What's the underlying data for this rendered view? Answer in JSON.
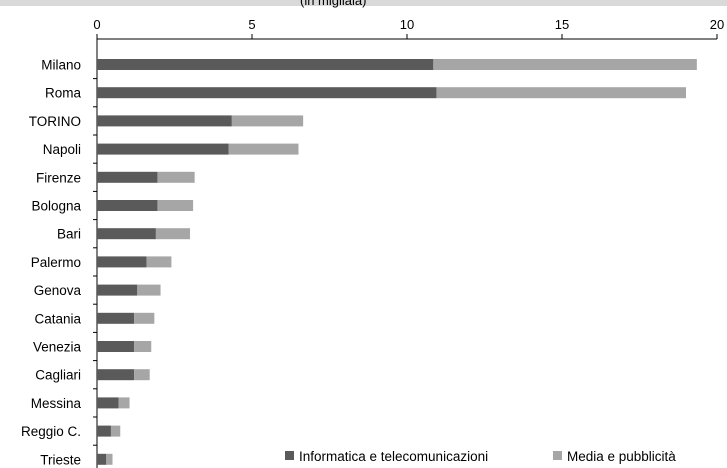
{
  "chart_data": {
    "type": "bar",
    "orientation": "horizontal",
    "stacked": true,
    "title": "(in migliaia)",
    "xlabel": "",
    "ylabel": "",
    "xlim": [
      0,
      20
    ],
    "x_ticks": [
      0,
      5,
      10,
      15,
      20
    ],
    "grid": false,
    "legend_position": "bottom-right",
    "categories": [
      "Milano",
      "Roma",
      "TORINO",
      "Napoli",
      "Firenze",
      "Bologna",
      "Bari",
      "Palermo",
      "Genova",
      "Catania",
      "Venezia",
      "Cagliari",
      "Messina",
      "Reggio C.",
      "Trieste"
    ],
    "series": [
      {
        "name": "Informatica e telecomunicazioni",
        "color": "#5a5a5a",
        "values": [
          10.85,
          10.95,
          4.35,
          4.25,
          1.95,
          1.95,
          1.9,
          1.6,
          1.3,
          1.2,
          1.2,
          1.2,
          0.7,
          0.45,
          0.3
        ]
      },
      {
        "name": "Media e pubblicità",
        "color": "#a6a6a6",
        "values": [
          8.5,
          8.05,
          2.3,
          2.25,
          1.2,
          1.15,
          1.1,
          0.8,
          0.75,
          0.65,
          0.55,
          0.5,
          0.35,
          0.3,
          0.2
        ]
      }
    ]
  }
}
